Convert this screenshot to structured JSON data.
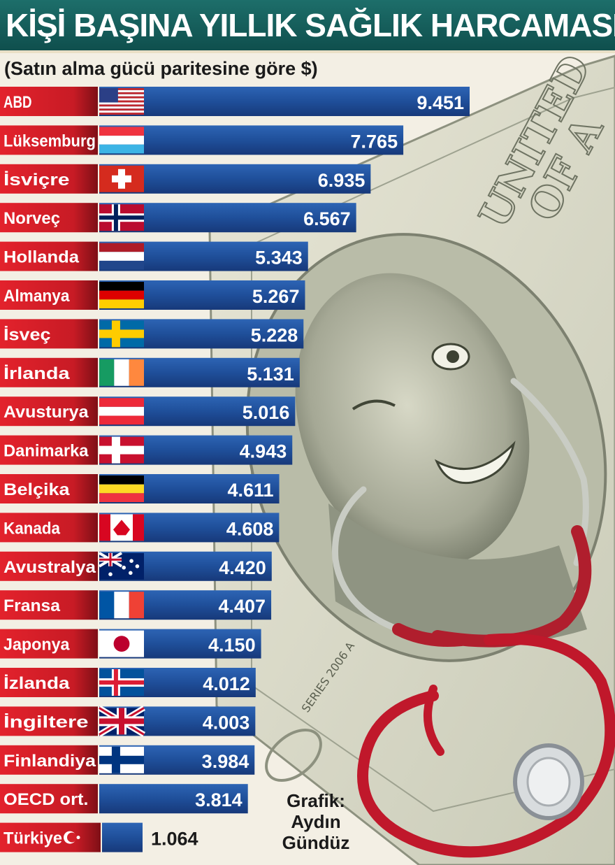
{
  "header": {
    "title": "KİŞİ BAŞINA YILLIK SAĞLIK HARCAMASI",
    "subtitle": "(Satın alma gücü paritesine göre $)"
  },
  "credit": {
    "line1": "Grafik:",
    "line2": "Aydın",
    "line3": "Gündüz"
  },
  "colors": {
    "title_bg": "#1a6664",
    "label_red": "#d4202a",
    "bar_blue": "#1f4f9a",
    "turkey_bar": "#1d3f87"
  },
  "chart_data": {
    "type": "bar",
    "orientation": "horizontal",
    "title": "KİŞİ BAŞINA YILLIK SAĞLIK HARCAMASI",
    "subtitle": "(Satın alma gücü paritesine göre $)",
    "categories": [
      "ABD",
      "Lüksemburg",
      "İsviçre",
      "Norveç",
      "Hollanda",
      "Almanya",
      "İsveç",
      "İrlanda",
      "Avusturya",
      "Danimarka",
      "Belçika",
      "Kanada",
      "Avustralya",
      "Fransa",
      "Japonya",
      "İzlanda",
      "İngiltere",
      "Finlandiya",
      "OECD ort.",
      "Türkiye"
    ],
    "values": [
      9451,
      7765,
      6935,
      6567,
      5343,
      5267,
      5228,
      5131,
      5016,
      4943,
      4611,
      4608,
      4420,
      4407,
      4150,
      4012,
      4003,
      3984,
      3814,
      1064
    ],
    "value_labels": [
      "9.451",
      "7.765",
      "6.935",
      "6.567",
      "5.343",
      "5.267",
      "5.228",
      "5.131",
      "5.016",
      "4.943",
      "4.611",
      "4.608",
      "4.420",
      "4.407",
      "4.150",
      "4.012",
      "4.003",
      "3.984",
      "3.814",
      "1.064"
    ],
    "flags": [
      "us-flag-icon",
      "luxembourg-flag-icon",
      "switzerland-flag-icon",
      "norway-flag-icon",
      "netherlands-flag-icon",
      "germany-flag-icon",
      "sweden-flag-icon",
      "ireland-flag-icon",
      "austria-flag-icon",
      "denmark-flag-icon",
      "belgium-flag-icon",
      "canada-flag-icon",
      "australia-flag-icon",
      "france-flag-icon",
      "japan-flag-icon",
      "iceland-flag-icon",
      "uk-flag-icon",
      "finland-flag-icon",
      "",
      "turkey-flag-icon"
    ],
    "grid": false,
    "legend": false
  }
}
